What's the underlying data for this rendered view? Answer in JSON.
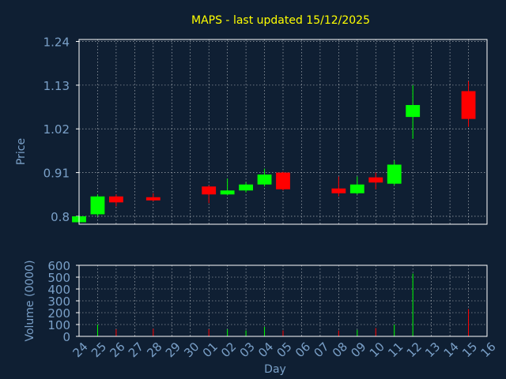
{
  "colors": {
    "background": "#0f1f33",
    "plot_background": "#0f1f33",
    "frame": "#ffffff",
    "grid": "#ffffff",
    "title": "#ffff00",
    "axis_text": "#7aa0c8",
    "up": "#00ff00",
    "down": "#ff0000"
  },
  "chart_data": {
    "type": "candlestick",
    "title": "MAPS - last updated 15/12/2025",
    "xlabel": "Day",
    "price_panel": {
      "ylabel": "Price",
      "ylim": [
        0.78,
        1.245
      ],
      "yticks": [
        "0.8",
        "0.91",
        "1.02",
        "1.13",
        "1.24"
      ],
      "grid": true
    },
    "volume_panel": {
      "ylabel": "Volume (0000)",
      "ylim": [
        0,
        600
      ],
      "yticks": [
        "0",
        "100",
        "200",
        "300",
        "400",
        "500",
        "600"
      ],
      "grid": true
    },
    "x_labels": [
      "24",
      "25",
      "26",
      "27",
      "28",
      "29",
      "30",
      "01",
      "02",
      "03",
      "04",
      "05",
      "06",
      "07",
      "08",
      "09",
      "10",
      "11",
      "12",
      "13",
      "14",
      "15",
      "16"
    ],
    "candles": [
      {
        "day": "24",
        "open": 0.785,
        "high": 0.8,
        "low": 0.785,
        "close": 0.8,
        "volume": 2
      },
      {
        "day": "25",
        "open": 0.805,
        "high": 0.855,
        "low": 0.8,
        "close": 0.85,
        "volume": 100
      },
      {
        "day": "26",
        "open": 0.85,
        "high": 0.855,
        "low": 0.825,
        "close": 0.835,
        "volume": 60
      },
      {
        "day": "28",
        "open": 0.848,
        "high": 0.858,
        "low": 0.838,
        "close": 0.84,
        "volume": 65
      },
      {
        "day": "01",
        "open": 0.875,
        "high": 0.878,
        "low": 0.833,
        "close": 0.855,
        "volume": 60
      },
      {
        "day": "02",
        "open": 0.855,
        "high": 0.895,
        "low": 0.853,
        "close": 0.865,
        "volume": 60
      },
      {
        "day": "03",
        "open": 0.865,
        "high": 0.885,
        "low": 0.86,
        "close": 0.88,
        "volume": 50
      },
      {
        "day": "04",
        "open": 0.88,
        "high": 0.92,
        "low": 0.875,
        "close": 0.905,
        "volume": 80
      },
      {
        "day": "05",
        "open": 0.91,
        "high": 0.912,
        "low": 0.865,
        "close": 0.868,
        "volume": 50
      },
      {
        "day": "08",
        "open": 0.87,
        "high": 0.9,
        "low": 0.85,
        "close": 0.858,
        "volume": 50
      },
      {
        "day": "09",
        "open": 0.858,
        "high": 0.9,
        "low": 0.855,
        "close": 0.88,
        "volume": 55
      },
      {
        "day": "10",
        "open": 0.898,
        "high": 0.91,
        "low": 0.868,
        "close": 0.885,
        "volume": 70
      },
      {
        "day": "11",
        "open": 0.882,
        "high": 0.94,
        "low": 0.878,
        "close": 0.93,
        "volume": 100
      },
      {
        "day": "12",
        "open": 1.05,
        "high": 1.13,
        "low": 0.995,
        "close": 1.08,
        "volume": 530
      },
      {
        "day": "15",
        "open": 1.115,
        "high": 1.14,
        "low": 1.025,
        "close": 1.045,
        "volume": 230
      }
    ]
  }
}
